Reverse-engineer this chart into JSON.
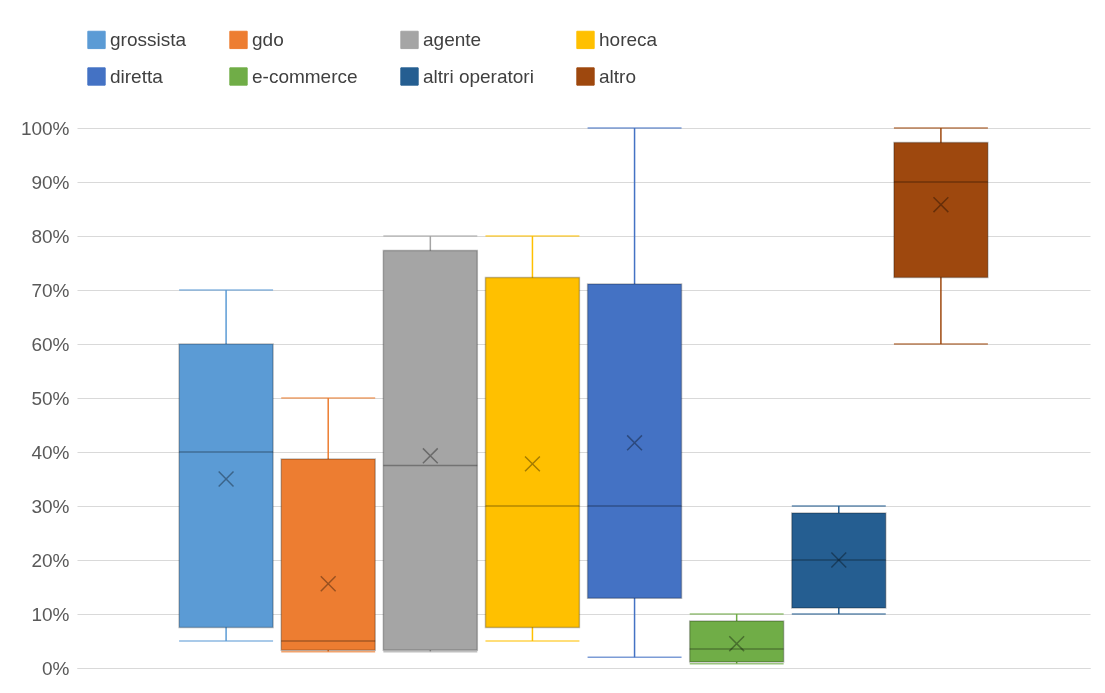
{
  "chart_data": {
    "type": "box",
    "categories": [
      null
    ],
    "series": [
      {
        "name": "grossista",
        "color": "#5b9bd5",
        "boxes": [
          {
            "low": 5,
            "q1": 7.5,
            "median": 40,
            "q3": 60,
            "high": 70,
            "mean": 35
          }
        ]
      },
      {
        "name": "gdo",
        "color": "#ed7d31",
        "boxes": [
          {
            "low": 3,
            "q1": 3.3,
            "median": 5,
            "q3": 38.7,
            "high": 50,
            "mean": 15.6
          }
        ]
      },
      {
        "name": "agente",
        "color": "#a5a5a5",
        "boxes": [
          {
            "low": 3,
            "q1": 3.3,
            "median": 37.5,
            "q3": 77.3,
            "high": 80,
            "mean": 39.3
          }
        ]
      },
      {
        "name": "horeca",
        "color": "#ffc000",
        "boxes": [
          {
            "low": 5,
            "q1": 7.5,
            "median": 30,
            "q3": 72.3,
            "high": 80,
            "mean": 37.8
          }
        ]
      },
      {
        "name": "diretta",
        "color": "#4472c4",
        "boxes": [
          {
            "low": 2,
            "q1": 12.9,
            "median": 30,
            "q3": 71.1,
            "high": 100,
            "mean": 41.7
          }
        ]
      },
      {
        "name": "e-commerce",
        "color": "#70ad47",
        "boxes": [
          {
            "low": 0.8,
            "q1": 1.1,
            "median": 3.5,
            "q3": 8.7,
            "high": 10,
            "mean": 4.5
          }
        ]
      },
      {
        "name": "altri operatori",
        "color": "#255e91",
        "boxes": [
          {
            "low": 10,
            "q1": 11.1,
            "median": 20,
            "q3": 28.7,
            "high": 30,
            "mean": 20
          }
        ]
      },
      {
        "name": "altro",
        "color": "#9e480e",
        "boxes": [
          {
            "low": 60,
            "q1": 72.3,
            "median": 90,
            "q3": 97.3,
            "high": 100,
            "mean": 85.8
          }
        ]
      }
    ],
    "ylim": [
      0,
      100
    ],
    "yticks": [
      {
        "value": 0,
        "label": "0%"
      },
      {
        "value": 10,
        "label": "10%"
      },
      {
        "value": 20,
        "label": "20%"
      },
      {
        "value": 30,
        "label": "30%"
      },
      {
        "value": 40,
        "label": "40%"
      },
      {
        "value": 50,
        "label": "50%"
      },
      {
        "value": 60,
        "label": "60%"
      },
      {
        "value": 70,
        "label": "70%"
      },
      {
        "value": 80,
        "label": "80%"
      },
      {
        "value": 90,
        "label": "90%"
      },
      {
        "value": 100,
        "label": "100%"
      }
    ],
    "grid": "y",
    "legend": "top",
    "tick_labels": "y"
  }
}
